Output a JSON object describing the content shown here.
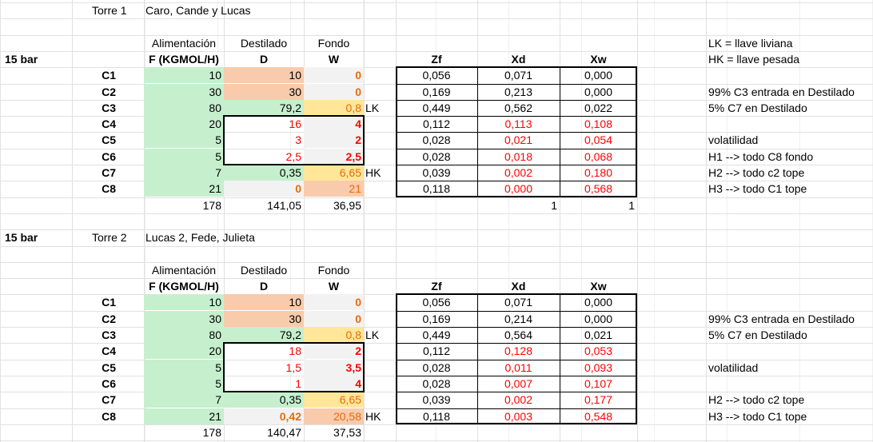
{
  "top": {
    "torre_label": "Torre 1",
    "members": "Caro, Cande y  Lucas",
    "pressure": "15 bar",
    "h_alim": "Alimentación",
    "h_dest": "Destilado",
    "h_fondo": "Fondo",
    "h_F": "F (KGMOL/H)",
    "h_D": "D",
    "h_W": "W",
    "h_zf": "Zf",
    "h_xd": "Xd",
    "h_xw": "Xw",
    "rows": [
      {
        "comp": "C1",
        "F": "10",
        "D": "10",
        "W": "0",
        "tag": "",
        "zf": "0,056",
        "xd": "0,071",
        "xw": "0,000"
      },
      {
        "comp": "C2",
        "F": "30",
        "D": "30",
        "W": "0",
        "tag": "",
        "zf": "0,169",
        "xd": "0,213",
        "xw": "0,000"
      },
      {
        "comp": "C3",
        "F": "80",
        "D": "79,2",
        "W": "0,8",
        "tag": "LK",
        "zf": "0,449",
        "xd": "0,562",
        "xw": "0,022"
      },
      {
        "comp": "C4",
        "F": "20",
        "D": "16",
        "W": "4",
        "tag": "",
        "zf": "0,112",
        "xd": "0,113",
        "xw": "0,108"
      },
      {
        "comp": "C5",
        "F": "5",
        "D": "3",
        "W": "2",
        "tag": "",
        "zf": "0,028",
        "xd": "0,021",
        "xw": "0,054"
      },
      {
        "comp": "C6",
        "F": "5",
        "D": "2,5",
        "W": "2,5",
        "tag": "",
        "zf": "0,028",
        "xd": "0,018",
        "xw": "0,068"
      },
      {
        "comp": "C7",
        "F": "7",
        "D": "0,35",
        "W": "6,65",
        "tag": "HK",
        "zf": "0,039",
        "xd": "0,002",
        "xw": "0,180"
      },
      {
        "comp": "C8",
        "F": "21",
        "D": "0",
        "W": "21",
        "tag": "",
        "zf": "0,118",
        "xd": "0,000",
        "xw": "0,568"
      }
    ],
    "totals": {
      "F": "178",
      "D": "141,05",
      "W": "36,95",
      "xd": "1",
      "xw": "1"
    },
    "notes": [
      "LK = llave liviana",
      "HK = llave pesada",
      "99% C3 entrada en Destilado",
      "5% C7 en Destilado",
      "volatilidad",
      "H1 --> todo C8 fondo",
      "H2 --> todo c2 tope",
      "H3 --> todo C1 tope"
    ]
  },
  "bottom": {
    "torre_label": "Torre 2",
    "members": "Lucas 2, Fede, Julieta",
    "pressure": "15 bar",
    "h_alim": "Alimentación",
    "h_dest": "Destilado",
    "h_fondo": "Fondo",
    "h_F": "F (KGMOL/H)",
    "h_D": "D",
    "h_W": "W",
    "h_zf": "Zf",
    "h_xd": "Xd",
    "h_xw": "Xw",
    "rows": [
      {
        "comp": "C1",
        "F": "10",
        "D": "10",
        "W": "0",
        "tag": "",
        "zf": "0,056",
        "xd": "0,071",
        "xw": "0,000"
      },
      {
        "comp": "C2",
        "F": "30",
        "D": "30",
        "W": "0",
        "tag": "",
        "zf": "0,169",
        "xd": "0,214",
        "xw": "0,000"
      },
      {
        "comp": "C3",
        "F": "80",
        "D": "79,2",
        "W": "0,8",
        "tag": "LK",
        "zf": "0,449",
        "xd": "0,564",
        "xw": "0,021"
      },
      {
        "comp": "C4",
        "F": "20",
        "D": "18",
        "W": "2",
        "tag": "",
        "zf": "0,112",
        "xd": "0,128",
        "xw": "0,053"
      },
      {
        "comp": "C5",
        "F": "5",
        "D": "1,5",
        "W": "3,5",
        "tag": "",
        "zf": "0,028",
        "xd": "0,011",
        "xw": "0,093"
      },
      {
        "comp": "C6",
        "F": "5",
        "D": "1",
        "W": "4",
        "tag": "",
        "zf": "0,028",
        "xd": "0,007",
        "xw": "0,107"
      },
      {
        "comp": "C7",
        "F": "7",
        "D": "0,35",
        "W": "6,65",
        "tag": "",
        "zf": "0,039",
        "xd": "0,002",
        "xw": "0,177"
      },
      {
        "comp": "C8",
        "F": "21",
        "D": "0,42",
        "W": "20,58",
        "tag": "HK",
        "zf": "0,118",
        "xd": "0,003",
        "xw": "0,548"
      }
    ],
    "totals": {
      "F": "178",
      "D": "140,47",
      "W": "37,53"
    },
    "notes": [
      "99% C3 entrada en Destilado",
      "5% C7 en Destilado",
      "volatilidad",
      "H2 --> todo c2 tope",
      "H3 --> todo C1 tope"
    ]
  },
  "colors": {
    "green_fill": "#c6efce",
    "orange_fill": "#f8cbad",
    "yellow_fill": "#ffe699",
    "grey_fill": "#f2f2f2",
    "red_text": "#ff0000",
    "orange_text": "#e46c0a",
    "green_text": "#2e7d32"
  }
}
